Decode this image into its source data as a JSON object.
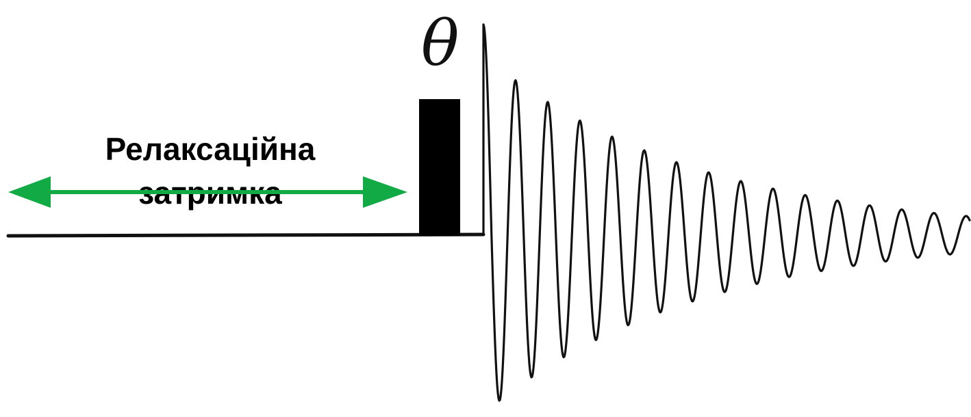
{
  "pulse": {
    "angle_symbol": "θ"
  },
  "relaxation_delay": {
    "line1": "Релаксаційна",
    "line2": "затримка"
  },
  "colors": {
    "arrow": "#11aa44",
    "ink": "#111111",
    "background": "#ffffff"
  }
}
